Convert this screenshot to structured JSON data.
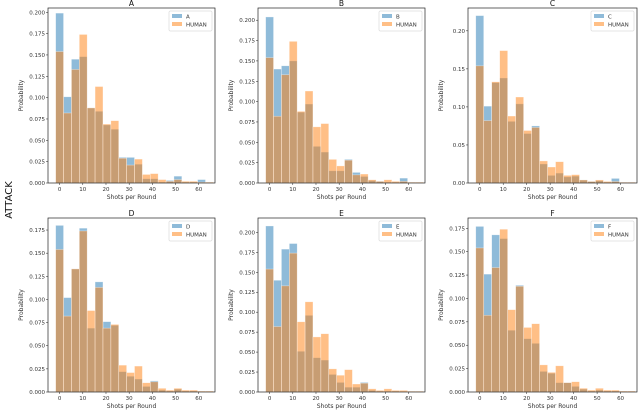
{
  "row_label": "ATTACK",
  "colors": {
    "agent": "#1f77b4",
    "human": "#ff7f0e"
  },
  "chart_data": [
    {
      "type": "bar",
      "title": "A",
      "xlabel": "Shots per Round",
      "ylabel": "Probability",
      "xlim": [
        -5,
        67
      ],
      "ylim": [
        0,
        0.205
      ],
      "yticks": [
        0,
        0.025,
        0.05,
        0.075,
        0.1,
        0.125,
        0.15,
        0.175,
        0.2
      ],
      "ytick_labels": [
        "0.000",
        "0.025",
        "0.050",
        "0.075",
        "0.100",
        "0.125",
        "0.150",
        "0.175",
        "0.200"
      ],
      "xticks": [
        0,
        10,
        20,
        30,
        40,
        50,
        60
      ],
      "bin_start": -1.7,
      "bin_width": 3.4,
      "legend": "top-right",
      "grid": false,
      "series": [
        {
          "name": "A",
          "values": [
            0.199,
            0.101,
            0.145,
            0.148,
            0.088,
            0.084,
            0.068,
            0.063,
            0.03,
            0.03,
            0.022,
            0.005,
            0.005,
            0.001,
            0.003,
            0.008,
            0.001,
            0.001,
            0.004,
            0.0
          ]
        },
        {
          "name": "HUMAN",
          "values": [
            0.154,
            0.082,
            0.133,
            0.174,
            0.088,
            0.113,
            0.069,
            0.073,
            0.029,
            0.021,
            0.028,
            0.01,
            0.011,
            0.004,
            0.002,
            0.004,
            0.002,
            0.002,
            0.001,
            0.001
          ]
        }
      ]
    },
    {
      "type": "bar",
      "title": "B",
      "xlabel": "Shots per Round",
      "ylabel": "Probability",
      "xlim": [
        -5,
        67
      ],
      "ylim": [
        0,
        0.215
      ],
      "yticks": [
        0,
        0.025,
        0.05,
        0.075,
        0.1,
        0.125,
        0.15,
        0.175,
        0.2
      ],
      "ytick_labels": [
        "0.000",
        "0.025",
        "0.050",
        "0.075",
        "0.100",
        "0.125",
        "0.150",
        "0.175",
        "0.200"
      ],
      "xticks": [
        0,
        10,
        20,
        30,
        40,
        50,
        60
      ],
      "bin_start": -1.7,
      "bin_width": 3.4,
      "legend": "top-right",
      "grid": false,
      "series": [
        {
          "name": "B",
          "values": [
            0.204,
            0.14,
            0.144,
            0.15,
            0.087,
            0.097,
            0.045,
            0.038,
            0.015,
            0.015,
            0.029,
            0.013,
            0.008,
            0.003,
            0.002,
            0.001,
            0.001,
            0.006,
            0.0,
            0.0
          ]
        },
        {
          "name": "HUMAN",
          "values": [
            0.154,
            0.082,
            0.133,
            0.174,
            0.088,
            0.113,
            0.069,
            0.073,
            0.029,
            0.021,
            0.028,
            0.01,
            0.011,
            0.004,
            0.002,
            0.004,
            0.002,
            0.002,
            0.001,
            0.001
          ]
        }
      ]
    },
    {
      "type": "bar",
      "title": "C",
      "xlabel": "Shots per Round",
      "ylabel": "Probability",
      "xlim": [
        -5,
        67
      ],
      "ylim": [
        0,
        0.23
      ],
      "yticks": [
        0,
        0.05,
        0.1,
        0.15,
        0.2
      ],
      "ytick_labels": [
        "0.00",
        "0.05",
        "0.10",
        "0.15",
        "0.20"
      ],
      "xticks": [
        0,
        10,
        20,
        30,
        40,
        50,
        60
      ],
      "bin_start": -1.7,
      "bin_width": 3.4,
      "legend": "top-right",
      "grid": false,
      "series": [
        {
          "name": "C",
          "values": [
            0.22,
            0.101,
            0.132,
            0.138,
            0.081,
            0.104,
            0.065,
            0.075,
            0.025,
            0.01,
            0.013,
            0.008,
            0.009,
            0.004,
            0.002,
            0.003,
            0.001,
            0.006,
            0.0,
            0.0
          ]
        },
        {
          "name": "HUMAN",
          "values": [
            0.154,
            0.082,
            0.133,
            0.174,
            0.088,
            0.113,
            0.069,
            0.073,
            0.029,
            0.021,
            0.028,
            0.01,
            0.011,
            0.004,
            0.002,
            0.004,
            0.002,
            0.002,
            0.001,
            0.001
          ]
        }
      ]
    },
    {
      "type": "bar",
      "title": "D",
      "xlabel": "Shots per Round",
      "ylabel": "Probability",
      "xlim": [
        -5,
        67
      ],
      "ylim": [
        0,
        0.188
      ],
      "yticks": [
        0,
        0.025,
        0.05,
        0.075,
        0.1,
        0.125,
        0.15,
        0.175
      ],
      "ytick_labels": [
        "0.000",
        "0.025",
        "0.050",
        "0.075",
        "0.100",
        "0.125",
        "0.150",
        "0.175"
      ],
      "xticks": [
        0,
        10,
        20,
        30,
        40,
        50,
        60
      ],
      "bin_start": -1.7,
      "bin_width": 3.4,
      "legend": "top-right",
      "grid": false,
      "series": [
        {
          "name": "D",
          "values": [
            0.18,
            0.102,
            0.133,
            0.177,
            0.069,
            0.119,
            0.076,
            0.072,
            0.022,
            0.017,
            0.014,
            0.006,
            0.012,
            0.002,
            0.001,
            0.003,
            0.001,
            0.001,
            0.0,
            0.0
          ]
        },
        {
          "name": "HUMAN",
          "values": [
            0.154,
            0.082,
            0.133,
            0.174,
            0.088,
            0.113,
            0.069,
            0.073,
            0.029,
            0.021,
            0.028,
            0.01,
            0.011,
            0.004,
            0.002,
            0.004,
            0.002,
            0.002,
            0.001,
            0.001
          ]
        }
      ]
    },
    {
      "type": "bar",
      "title": "E",
      "xlabel": "Shots per Round",
      "ylabel": "Probability",
      "xlim": [
        -5,
        67
      ],
      "ylim": [
        0,
        0.218
      ],
      "yticks": [
        0,
        0.025,
        0.05,
        0.075,
        0.1,
        0.125,
        0.15,
        0.175,
        0.2
      ],
      "ytick_labels": [
        "0.000",
        "0.025",
        "0.050",
        "0.075",
        "0.100",
        "0.125",
        "0.150",
        "0.175",
        "0.200"
      ],
      "xticks": [
        0,
        10,
        20,
        30,
        40,
        50,
        60
      ],
      "bin_start": -1.7,
      "bin_width": 3.4,
      "legend": "top-right",
      "grid": false,
      "series": [
        {
          "name": "E",
          "values": [
            0.208,
            0.14,
            0.179,
            0.186,
            0.051,
            0.096,
            0.043,
            0.04,
            0.022,
            0.012,
            0.006,
            0.006,
            0.012,
            0.002,
            0.001,
            0.001,
            0.001,
            0.0,
            0.0,
            0.0
          ]
        },
        {
          "name": "HUMAN",
          "values": [
            0.154,
            0.082,
            0.133,
            0.174,
            0.088,
            0.113,
            0.069,
            0.073,
            0.029,
            0.021,
            0.028,
            0.01,
            0.011,
            0.004,
            0.002,
            0.004,
            0.002,
            0.002,
            0.001,
            0.001
          ]
        }
      ]
    },
    {
      "type": "bar",
      "title": "F",
      "xlabel": "Shots per Round",
      "ylabel": "Probability",
      "xlim": [
        -5,
        67
      ],
      "ylim": [
        0,
        0.186
      ],
      "yticks": [
        0,
        0.025,
        0.05,
        0.075,
        0.1,
        0.125,
        0.15,
        0.175
      ],
      "ytick_labels": [
        "0.000",
        "0.025",
        "0.050",
        "0.075",
        "0.100",
        "0.125",
        "0.150",
        "0.175"
      ],
      "xticks": [
        0,
        10,
        20,
        30,
        40,
        50,
        60
      ],
      "bin_start": -1.7,
      "bin_width": 3.4,
      "legend": "top-right",
      "grid": false,
      "series": [
        {
          "name": "F",
          "values": [
            0.177,
            0.126,
            0.168,
            0.164,
            0.066,
            0.114,
            0.057,
            0.052,
            0.022,
            0.02,
            0.01,
            0.01,
            0.006,
            0.003,
            0.001,
            0.002,
            0.001,
            0.001,
            0.0,
            0.0
          ]
        },
        {
          "name": "HUMAN",
          "values": [
            0.154,
            0.082,
            0.133,
            0.174,
            0.088,
            0.113,
            0.069,
            0.073,
            0.029,
            0.021,
            0.028,
            0.01,
            0.011,
            0.004,
            0.002,
            0.004,
            0.002,
            0.002,
            0.001,
            0.001
          ]
        }
      ]
    }
  ]
}
